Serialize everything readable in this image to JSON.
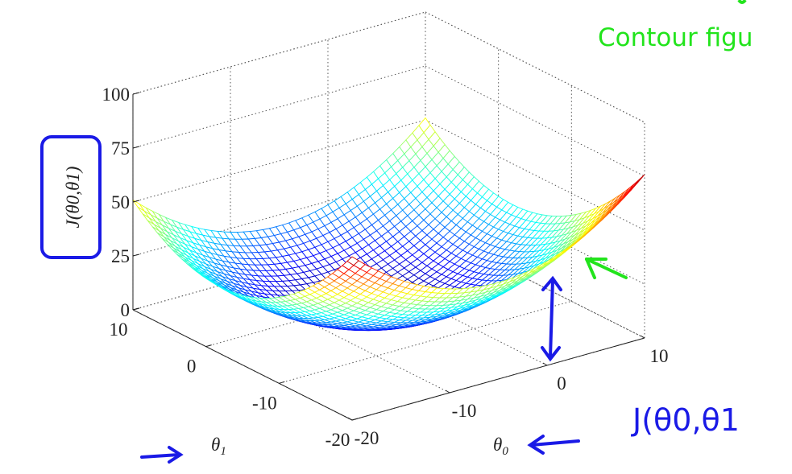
{
  "chart_data": {
    "type": "surface",
    "title": "",
    "xlabel": "θ0",
    "ylabel": "θ1",
    "zlabel": "J(θ0,θ1)",
    "x_range": [
      -20,
      10
    ],
    "y_range": [
      -20,
      10
    ],
    "z_range": [
      0,
      100
    ],
    "x_ticks": [
      "-20",
      "-10",
      "0",
      "10"
    ],
    "x_tick_values": [
      -20,
      -10,
      0,
      10
    ],
    "y_ticks": [
      "-20",
      "-10",
      "0",
      "10"
    ],
    "y_tick_values": [
      -20,
      -10,
      0,
      10
    ],
    "z_ticks": [
      "0",
      "25",
      "50",
      "75",
      "100"
    ],
    "z_tick_values": [
      0,
      25,
      50,
      75,
      100
    ],
    "surface_function": {
      "form": "J = a*((θ0-c0)^2 + (θ1-c1)^2)",
      "a": 0.138,
      "c0": -5,
      "c1": -2
    },
    "grid_points": 45,
    "colormap": "jet",
    "color_limits": [
      0,
      78
    ],
    "grid": true
  },
  "annotations": {
    "green_note": "Contour figu",
    "blue_note": "J(θ0,θ1",
    "green_color": "#22e41c",
    "blue_color": "#1a1ae6"
  }
}
